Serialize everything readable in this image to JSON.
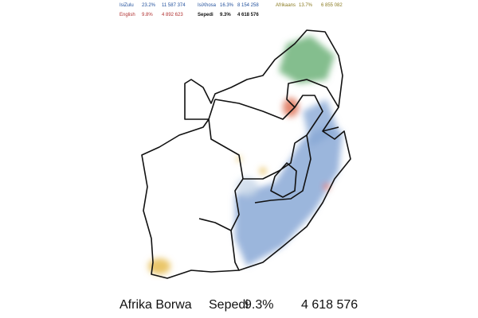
{
  "legend": [
    [
      {
        "name": "IsiZulu",
        "share": "23.2%",
        "speakers": "11 587 374"
      },
      {
        "name": "English",
        "share": "9.8%",
        "speakers": "4 892 623"
      }
    ],
    [
      {
        "name": "IsiXhosa",
        "share": "16.3%",
        "speakers": "8 154 258"
      },
      {
        "name": "Sepedi",
        "share": "9.3%",
        "speakers": "4 618 576"
      }
    ],
    [
      {
        "name": "Afrikaans",
        "share": "13.7%",
        "speakers": "6 855 082"
      }
    ]
  ],
  "footer": {
    "country": "Afrika Borwa",
    "language": "Sepedi",
    "share": "9.3%",
    "speakers": "4 618 576"
  }
}
